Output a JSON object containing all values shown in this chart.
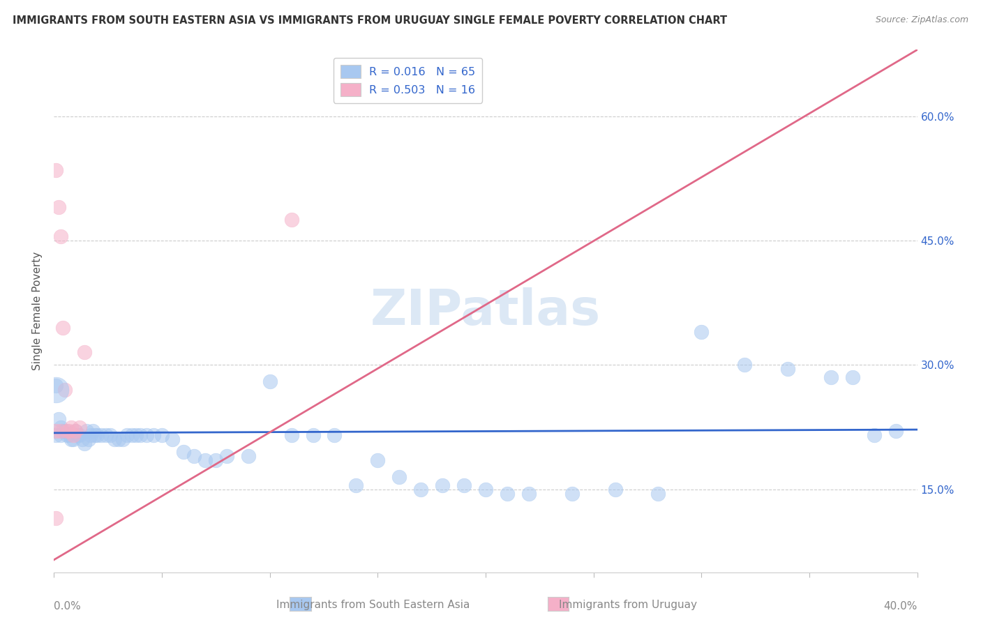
{
  "title": "IMMIGRANTS FROM SOUTH EASTERN ASIA VS IMMIGRANTS FROM URUGUAY SINGLE FEMALE POVERTY CORRELATION CHART",
  "source": "Source: ZipAtlas.com",
  "ylabel": "Single Female Poverty",
  "yticks": [
    0.15,
    0.3,
    0.45,
    0.6
  ],
  "ytick_labels": [
    "15.0%",
    "30.0%",
    "45.0%",
    "60.0%"
  ],
  "xlim": [
    0.0,
    0.4
  ],
  "ylim": [
    0.05,
    0.68
  ],
  "watermark": "ZIPatlas",
  "blue_scatter_x": [
    0.001,
    0.002,
    0.003,
    0.004,
    0.005,
    0.006,
    0.007,
    0.008,
    0.009,
    0.01,
    0.011,
    0.012,
    0.013,
    0.014,
    0.015,
    0.016,
    0.017,
    0.018,
    0.019,
    0.02,
    0.022,
    0.024,
    0.026,
    0.028,
    0.03,
    0.032,
    0.034,
    0.036,
    0.038,
    0.04,
    0.043,
    0.046,
    0.05,
    0.055,
    0.06,
    0.065,
    0.07,
    0.075,
    0.08,
    0.09,
    0.1,
    0.11,
    0.12,
    0.13,
    0.14,
    0.15,
    0.16,
    0.17,
    0.18,
    0.19,
    0.2,
    0.21,
    0.22,
    0.24,
    0.26,
    0.28,
    0.3,
    0.32,
    0.34,
    0.36,
    0.37,
    0.38,
    0.39,
    0.001,
    0.003
  ],
  "blue_scatter_y": [
    0.275,
    0.235,
    0.225,
    0.22,
    0.22,
    0.215,
    0.215,
    0.21,
    0.21,
    0.22,
    0.215,
    0.215,
    0.21,
    0.205,
    0.22,
    0.21,
    0.215,
    0.22,
    0.215,
    0.215,
    0.215,
    0.215,
    0.215,
    0.21,
    0.21,
    0.21,
    0.215,
    0.215,
    0.215,
    0.215,
    0.215,
    0.215,
    0.215,
    0.21,
    0.195,
    0.19,
    0.185,
    0.185,
    0.19,
    0.19,
    0.28,
    0.215,
    0.215,
    0.215,
    0.155,
    0.185,
    0.165,
    0.15,
    0.155,
    0.155,
    0.15,
    0.145,
    0.145,
    0.145,
    0.15,
    0.145,
    0.34,
    0.3,
    0.295,
    0.285,
    0.285,
    0.215,
    0.22,
    0.215,
    0.215
  ],
  "pink_scatter_x": [
    0.001,
    0.002,
    0.003,
    0.004,
    0.005,
    0.006,
    0.007,
    0.008,
    0.009,
    0.01,
    0.012,
    0.014,
    0.001,
    0.003,
    0.11,
    0.001
  ],
  "pink_scatter_y": [
    0.535,
    0.49,
    0.455,
    0.345,
    0.27,
    0.22,
    0.22,
    0.225,
    0.215,
    0.22,
    0.225,
    0.315,
    0.22,
    0.22,
    0.475,
    0.115
  ],
  "blue_line_x": [
    0.0,
    0.4
  ],
  "blue_line_y": [
    0.218,
    0.222
  ],
  "pink_line_x": [
    0.0,
    0.4
  ],
  "pink_line_y": [
    0.065,
    0.68
  ],
  "blue_color": "#a8c8f0",
  "pink_color": "#f5b0c8",
  "blue_line_color": "#3366cc",
  "pink_line_color": "#e06888",
  "grid_color": "#cccccc",
  "background_color": "#ffffff",
  "title_fontsize": 10.5,
  "axis_label_fontsize": 11,
  "source_fontsize": 9,
  "watermark_color": "#dce8f5",
  "watermark_fontsize": 52,
  "legend_R1": "R = 0.016",
  "legend_N1": "N = 65",
  "legend_R2": "R = 0.503",
  "legend_N2": "N = 16",
  "legend_color": "#3366cc",
  "bottom_legend1": "Immigrants from South Eastern Asia",
  "bottom_legend2": "Immigrants from Uruguay"
}
